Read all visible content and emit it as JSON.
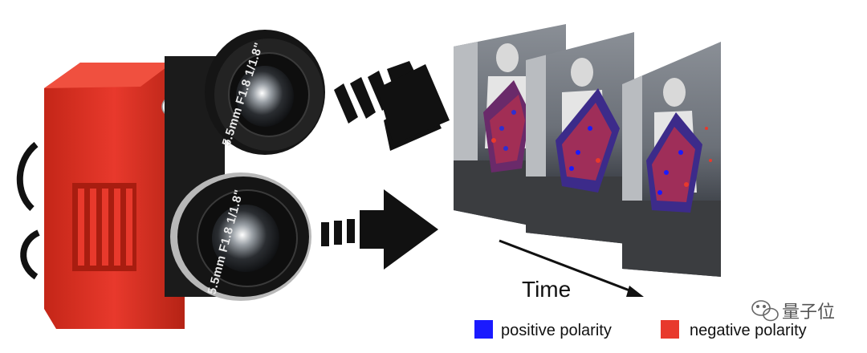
{
  "lenses": {
    "top_label": "5.5mm F1.8 1/1.8\"",
    "bottom_label": "5.5mm F1.8 1/1.8\""
  },
  "timeline": {
    "label": "Time"
  },
  "legend": {
    "positive": {
      "label": "positive polarity",
      "color": "#1a1aff"
    },
    "negative": {
      "label": "negative polarity",
      "color": "#e8392c"
    }
  },
  "watermark": {
    "text": "量子位",
    "icon": "wechat-icon"
  },
  "colors": {
    "camera_body": "#e8392c",
    "arrow": "#111111"
  }
}
